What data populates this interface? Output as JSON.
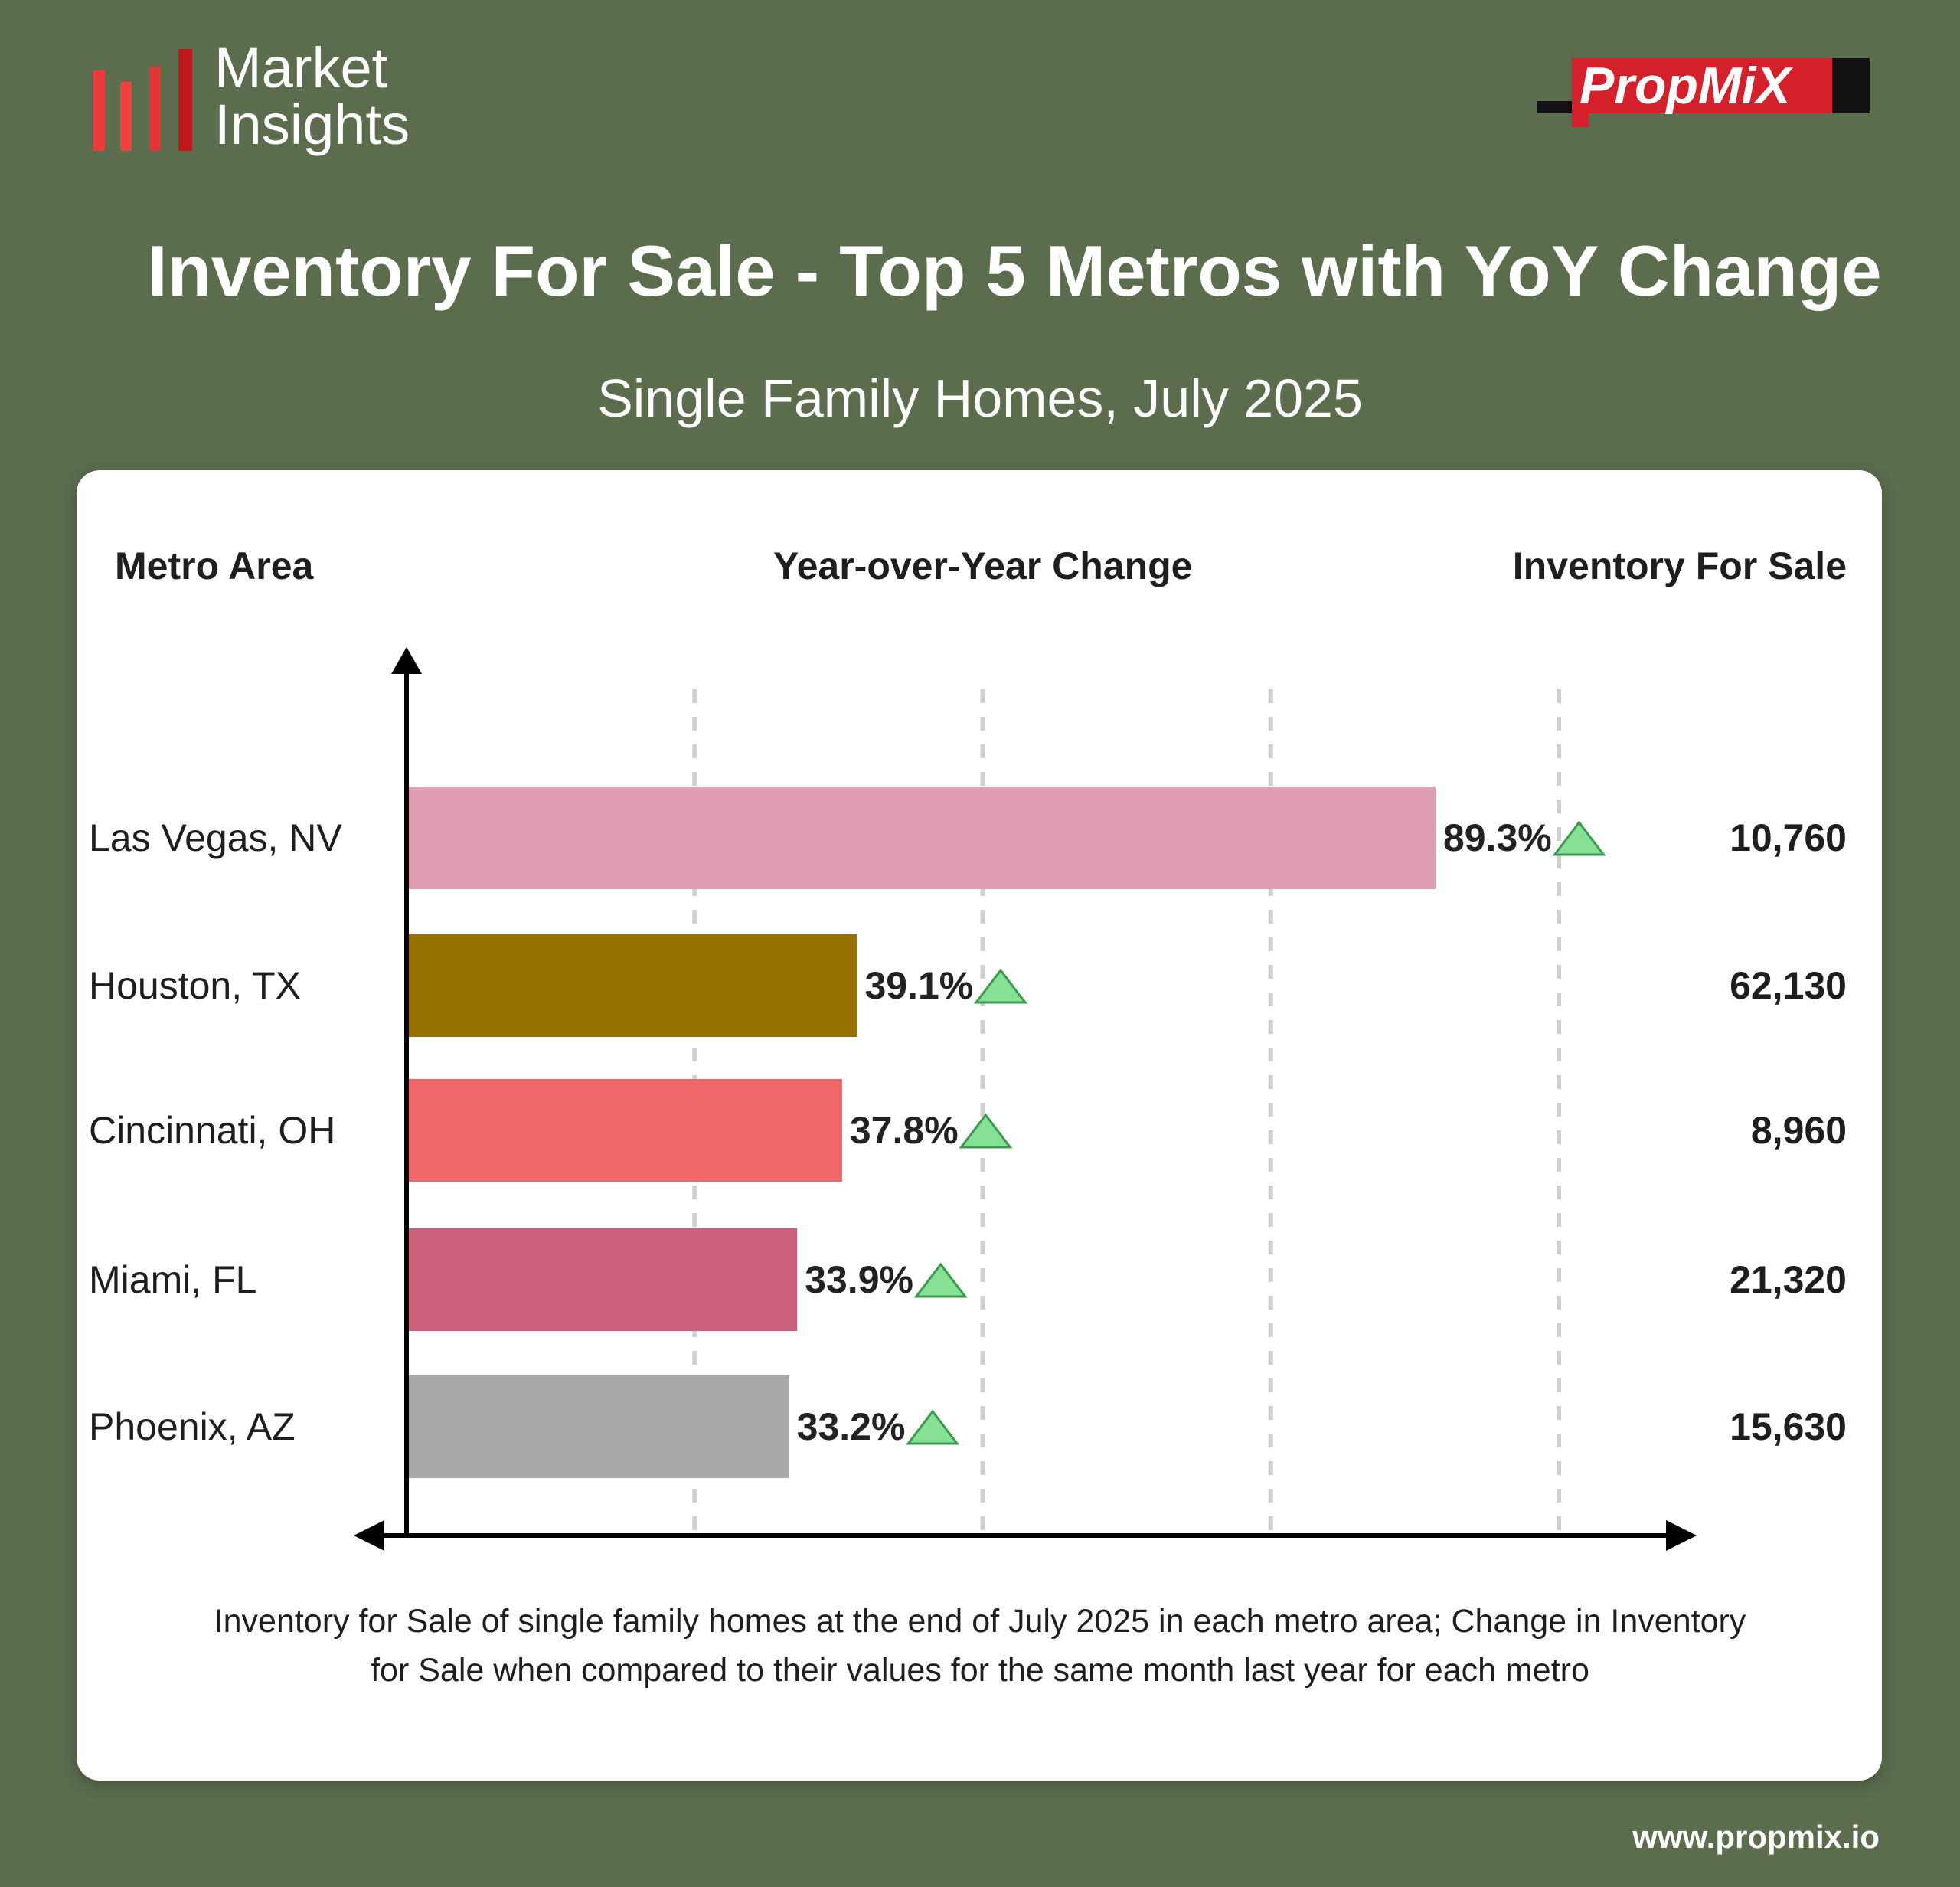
{
  "brand": {
    "logo_line1": "Market",
    "logo_line2": "Insights",
    "partner_logo": "PropMiX",
    "website": "www.propmix.io"
  },
  "title": "Inventory For Sale - Top 5 Metros with YoY Change",
  "subtitle": "Single Family Homes, July 2025",
  "headers": {
    "metro": "Metro Area",
    "yoy": "Year-over-Year Change",
    "inventory": "Inventory For Sale"
  },
  "footnote": "Inventory for Sale of single family homes at the end of July 2025 in each metro area; Change in Inventory for Sale when compared to their values for the same month last year for each metro",
  "chart_data": {
    "type": "bar",
    "orientation": "horizontal",
    "categories": [
      "Las Vegas, NV",
      "Houston, TX",
      "Cincinnati, OH",
      "Miami, FL",
      "Phoenix, AZ"
    ],
    "values": [
      89.3,
      39.1,
      37.8,
      33.9,
      33.2
    ],
    "value_labels": [
      "89.3%",
      "39.1%",
      "37.8%",
      "33.9%",
      "33.2%"
    ],
    "inventory": [
      "10,760",
      "62,130",
      "8,960",
      "21,320",
      "15,630"
    ],
    "bar_colors": [
      "#e19eb3",
      "#987200",
      "#ef6869",
      "#cb617b",
      "#a9a9a9"
    ],
    "trend": "up",
    "trend_color": "#86e096",
    "xlim": [
      0,
      100
    ],
    "gridlines": [
      25,
      50,
      75,
      100
    ],
    "xlabel": "Year-over-Year Change",
    "ylabel": "Metro Area"
  }
}
